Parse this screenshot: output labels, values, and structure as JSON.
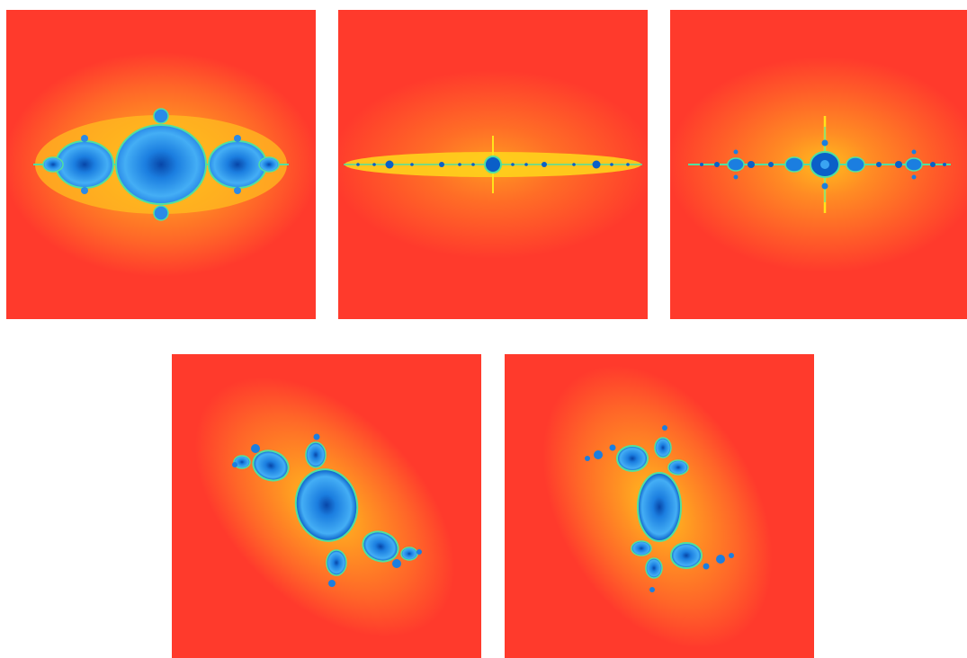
{
  "figure": {
    "background": "#ffffff",
    "colors": {
      "outer_field": "#ff3a2c",
      "halo_orange": "#ff7a25",
      "halo_yellow": "#ffd21c",
      "edge_green": "#4fe0a0",
      "set_light_blue": "#3aa4f2",
      "set_dark_blue": "#0a5fc8",
      "set_core": "#0746a8"
    },
    "panels": [
      {
        "id": "julia-1",
        "kind": "horizontal-chain-of-bulbs"
      },
      {
        "id": "julia-2",
        "kind": "thin-horizontal-dust-line"
      },
      {
        "id": "julia-3",
        "kind": "horizontal-dendrite-with-cross"
      },
      {
        "id": "julia-4",
        "kind": "diagonal-rabbit-like-set"
      },
      {
        "id": "julia-5",
        "kind": "rotated-rabbit-like-set"
      }
    ]
  }
}
